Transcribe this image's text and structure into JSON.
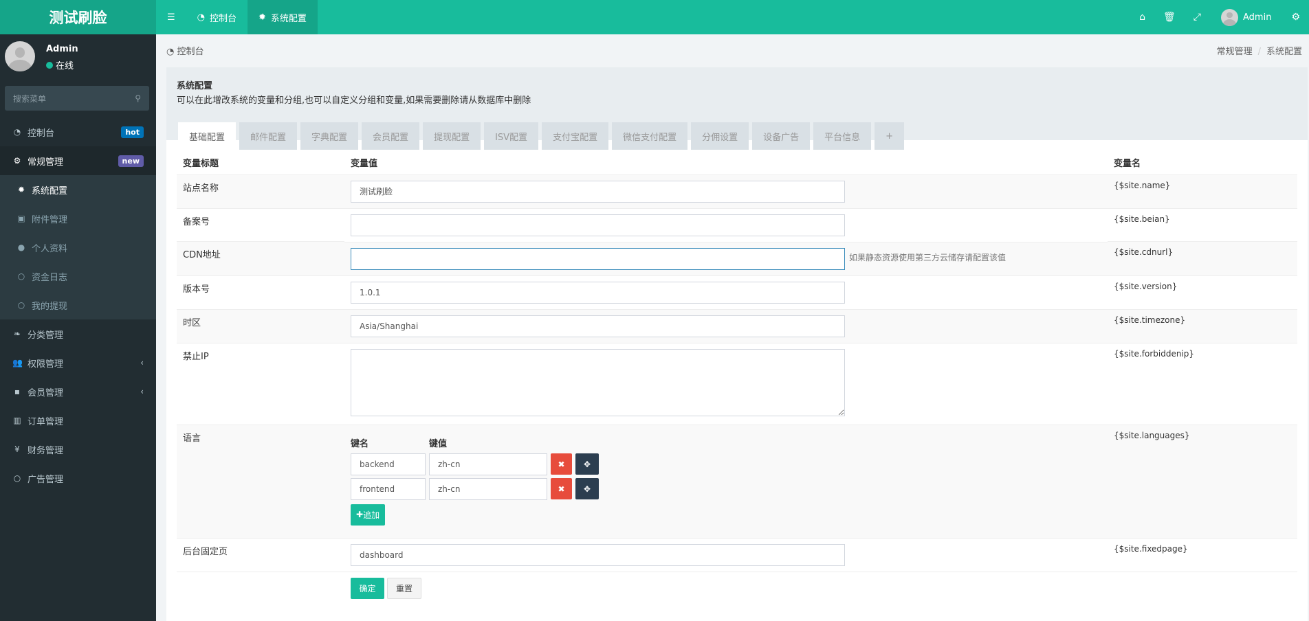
{
  "app": {
    "logo": "测试刷脸"
  },
  "topbar": {
    "tabs": [
      {
        "label": "控制台",
        "icon": "dashboard-icon"
      },
      {
        "label": "系统配置",
        "icon": "gear-icon"
      }
    ],
    "user": "Admin"
  },
  "sidebar": {
    "user": {
      "name": "Admin",
      "status": "在线"
    },
    "search_placeholder": "搜索菜单",
    "items": [
      {
        "label": "控制台",
        "badge": "hot",
        "badge_color": "#0073b7"
      },
      {
        "label": "常规管理",
        "badge": "new",
        "badge_color": "#605ca8"
      },
      {
        "label": "系统配置"
      },
      {
        "label": "附件管理"
      },
      {
        "label": "个人资料"
      },
      {
        "label": "资金日志"
      },
      {
        "label": "我的提现"
      },
      {
        "label": "分类管理"
      },
      {
        "label": "权限管理"
      },
      {
        "label": "会员管理"
      },
      {
        "label": "订单管理"
      },
      {
        "label": "财务管理"
      },
      {
        "label": "广告管理"
      }
    ]
  },
  "breadcrumb": {
    "home": "控制台",
    "path": [
      "常规管理",
      "系统配置"
    ]
  },
  "panel": {
    "title": "系统配置",
    "desc": "可以在此增改系统的变量和分组,也可以自定义分组和变量,如果需要删除请从数据库中删除",
    "tabs": [
      "基础配置",
      "邮件配置",
      "字典配置",
      "会员配置",
      "提现配置",
      "ISV配置",
      "支付宝配置",
      "微信支付配置",
      "分佣设置",
      "设备广告",
      "平台信息",
      "+"
    ]
  },
  "table": {
    "headers": [
      "变量标题",
      "变量值",
      "变量名"
    ],
    "rows": [
      {
        "label": "站点名称",
        "value": "测试刷脸",
        "name": "{$site.name}"
      },
      {
        "label": "备案号",
        "value": "",
        "name": "{$site.beian}"
      },
      {
        "label": "CDN地址",
        "value": "",
        "hint": "如果静态资源使用第三方云储存请配置该值",
        "name": "{$site.cdnurl}"
      },
      {
        "label": "版本号",
        "value": "1.0.1",
        "name": "{$site.version}"
      },
      {
        "label": "时区",
        "value": "Asia/Shanghai",
        "name": "{$site.timezone}"
      },
      {
        "label": "禁止IP",
        "value": "",
        "name": "{$site.forbiddenip}"
      },
      {
        "label": "语言",
        "name": "{$site.languages}",
        "key_header": "键名",
        "val_header": "键值",
        "pairs": [
          {
            "k": "backend",
            "v": "zh-cn"
          },
          {
            "k": "frontend",
            "v": "zh-cn"
          }
        ],
        "add": "追加"
      },
      {
        "label": "后台固定页",
        "value": "dashboard",
        "name": "{$site.fixedpage}"
      }
    ]
  },
  "actions": {
    "submit": "确定",
    "reset": "重置"
  }
}
